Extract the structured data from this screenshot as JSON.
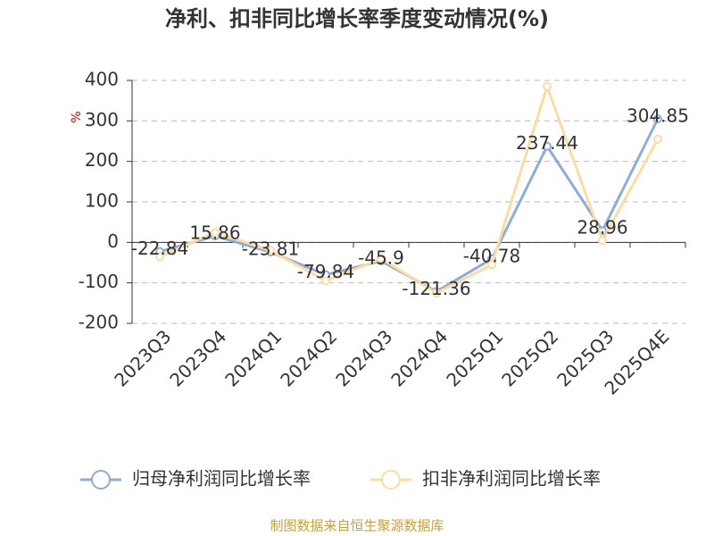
{
  "chart_data": {
    "type": "line",
    "title": "净利、扣非同比增长率季度变动情况(%)",
    "y_label": "%",
    "source": "制图数据来自恒生聚源数据库",
    "categories": [
      "2023Q3",
      "2023Q4",
      "2024Q1",
      "2024Q2",
      "2024Q3",
      "2024Q4",
      "2025Q1",
      "2025Q2",
      "2025Q3",
      "2025Q4E"
    ],
    "series": [
      {
        "name": "归母净利润同比增长率",
        "color": "#8eacd8",
        "show_labels": true,
        "values": [
          -22.84,
          15.86,
          -23.81,
          -79.84,
          -45.9,
          -121.36,
          -40.78,
          237.44,
          28.96,
          304.85
        ]
      },
      {
        "name": "扣非净利润同比增长率",
        "color": "#fcdca2",
        "show_labels": false,
        "values": [
          -35,
          25,
          -20,
          -95,
          -40,
          -125,
          -55,
          385,
          5,
          255
        ]
      }
    ],
    "ylim": [
      -200,
      400
    ],
    "yticks": [
      -200,
      -100,
      0,
      100,
      200,
      300,
      400
    ],
    "grid": true
  }
}
